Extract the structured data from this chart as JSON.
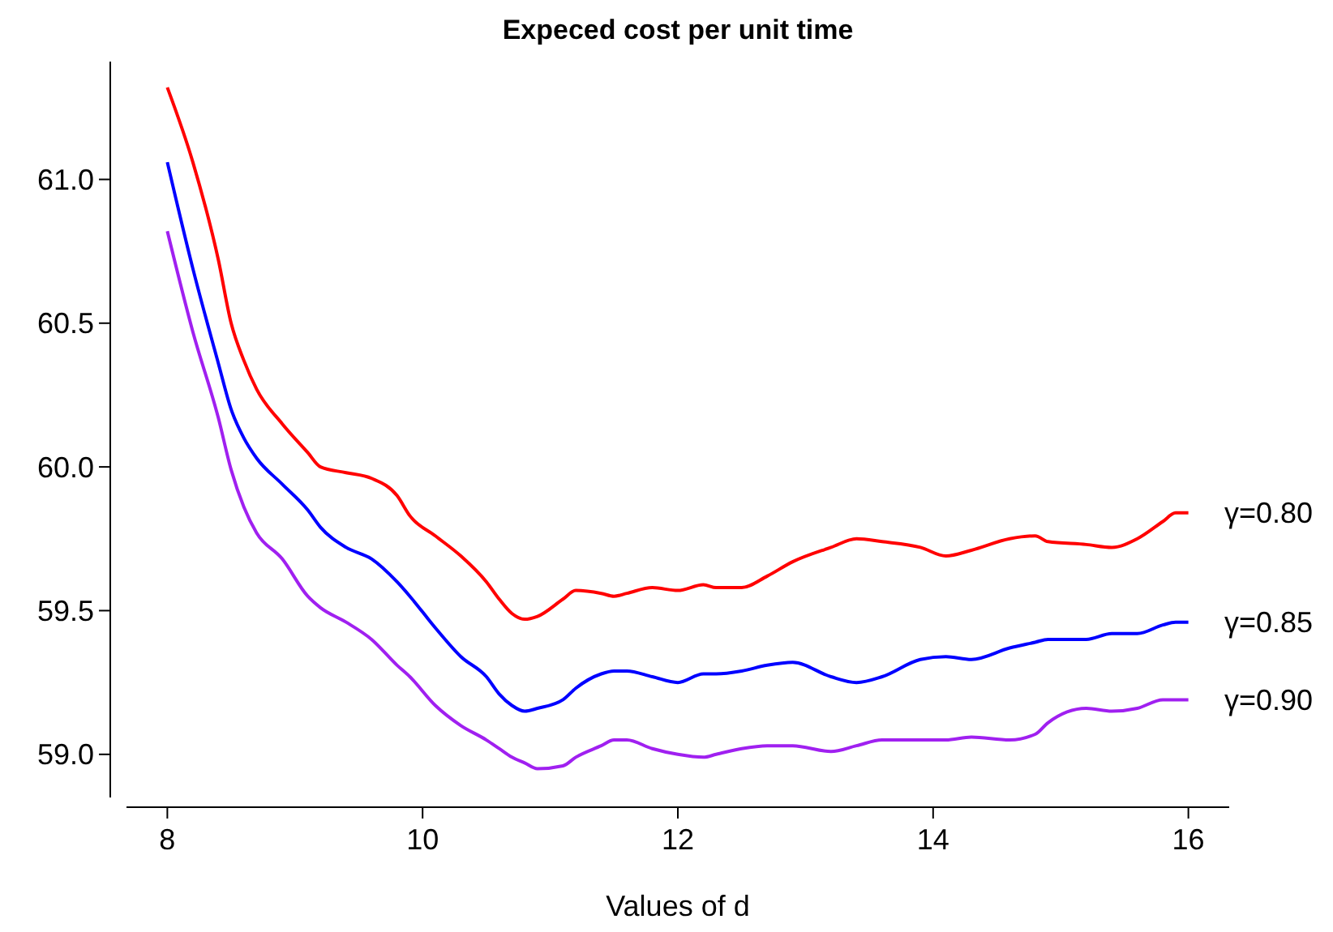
{
  "chart_data": {
    "type": "line",
    "title": "Expeced cost per unit time",
    "xlabel": "Values of d",
    "xlim": [
      7.68,
      16.32
    ],
    "ylim": [
      58.85,
      61.41
    ],
    "xticks": [
      8,
      10,
      12,
      14,
      16
    ],
    "yticks": [
      {
        "value": 59,
        "label": "59.0"
      },
      {
        "value": 59.5,
        "label": "59.5"
      },
      {
        "value": 60,
        "label": "60.0"
      },
      {
        "value": 60.5,
        "label": "60.5"
      },
      {
        "value": 61,
        "label": "61.0"
      }
    ],
    "x": [
      8,
      8.2,
      8.4,
      8.5,
      8.6,
      8.7,
      8.9,
      9.1,
      9.2,
      9.4,
      9.6,
      9.8,
      9.9,
      10.1,
      10.3,
      10.5,
      10.6,
      10.7,
      10.8,
      10.9,
      11.1,
      11.2,
      11.4,
      11.5,
      11.6,
      11.8,
      12,
      12.2,
      12.3,
      12.5,
      12.7,
      12.9,
      13.2,
      13.4,
      13.6,
      13.9,
      14.1,
      14.3,
      14.6,
      14.8,
      14.9,
      15.2,
      15.4,
      15.6,
      15.8,
      15.9,
      16
    ],
    "series": [
      {
        "name": "γ=0.80",
        "color": "#ff0000",
        "values": [
          61.32,
          61.06,
          60.72,
          60.5,
          60.37,
          60.27,
          60.15,
          60.05,
          60,
          59.98,
          59.96,
          59.9,
          59.83,
          59.76,
          59.69,
          59.6,
          59.54,
          59.49,
          59.47,
          59.48,
          59.54,
          59.57,
          59.56,
          59.55,
          59.56,
          59.58,
          59.57,
          59.59,
          59.58,
          59.58,
          59.62,
          59.67,
          59.72,
          59.75,
          59.74,
          59.72,
          59.69,
          59.71,
          59.75,
          59.76,
          59.74,
          59.73,
          59.72,
          59.75,
          59.81,
          59.84,
          59.84
        ]
      },
      {
        "name": "γ=0.85",
        "color": "#0000ff",
        "values": [
          61.06,
          60.69,
          60.36,
          60.2,
          60.1,
          60.03,
          59.94,
          59.85,
          59.79,
          59.72,
          59.68,
          59.6,
          59.55,
          59.44,
          59.34,
          59.27,
          59.21,
          59.17,
          59.15,
          59.16,
          59.19,
          59.23,
          59.28,
          59.29,
          59.29,
          59.27,
          59.25,
          59.28,
          59.28,
          59.29,
          59.31,
          59.32,
          59.27,
          59.25,
          59.27,
          59.33,
          59.34,
          59.33,
          59.37,
          59.39,
          59.4,
          59.4,
          59.42,
          59.42,
          59.45,
          59.46,
          59.46
        ]
      },
      {
        "name": "γ=0.90",
        "color": "#a020f0",
        "values": [
          60.82,
          60.47,
          60.17,
          59.99,
          59.86,
          59.77,
          59.68,
          59.55,
          59.51,
          59.46,
          59.4,
          59.31,
          59.27,
          59.17,
          59.1,
          59.05,
          59.02,
          58.99,
          58.97,
          58.95,
          58.96,
          58.99,
          59.03,
          59.05,
          59.05,
          59.02,
          59,
          58.99,
          59,
          59.02,
          59.03,
          59.03,
          59.01,
          59.03,
          59.05,
          59.05,
          59.05,
          59.06,
          59.05,
          59.07,
          59.11,
          59.16,
          59.15,
          59.16,
          59.19,
          59.19,
          59.19
        ]
      }
    ],
    "line_style": "solid",
    "marker": "none"
  }
}
